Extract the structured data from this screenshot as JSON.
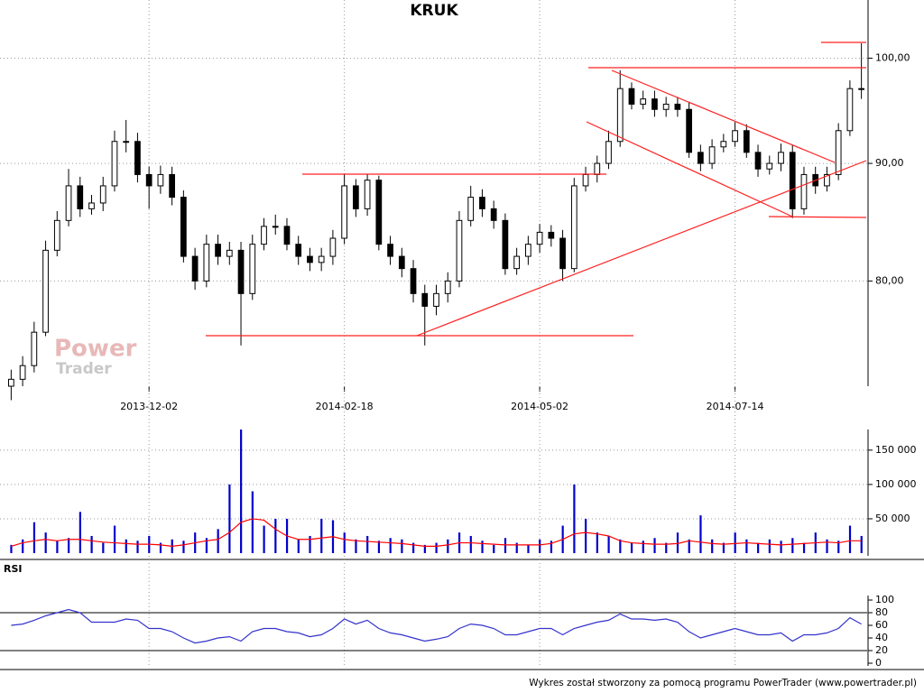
{
  "chart_data": [
    {
      "type": "candlestick",
      "title": "KRUK",
      "categories": [
        null,
        null,
        null,
        null,
        null,
        null,
        null,
        null,
        null,
        null,
        null,
        null,
        "2013-12-02",
        null,
        null,
        null,
        null,
        null,
        null,
        null,
        null,
        null,
        null,
        null,
        null,
        null,
        null,
        null,
        null,
        "2014-02-18",
        null,
        null,
        null,
        null,
        null,
        null,
        null,
        null,
        null,
        null,
        null,
        null,
        null,
        null,
        null,
        null,
        "2014-05-02",
        null,
        null,
        null,
        null,
        null,
        null,
        null,
        null,
        null,
        null,
        null,
        null,
        null,
        null,
        null,
        null,
        "2014-07-14",
        null,
        null,
        null,
        null,
        null,
        null,
        null,
        null,
        null,
        null,
        null
      ],
      "open": [
        72,
        72.5,
        73.5,
        76,
        82.5,
        85,
        88,
        86,
        86.5,
        88,
        92,
        92,
        89,
        88,
        89,
        87,
        82,
        80,
        83,
        82,
        82.5,
        79,
        83,
        84.5,
        84.5,
        83,
        82,
        81.5,
        82,
        83.5,
        88,
        86,
        88.5,
        83,
        82,
        81,
        79,
        78,
        79,
        80,
        85,
        87,
        86,
        85,
        81,
        82,
        83,
        84,
        83.5,
        81,
        88,
        89,
        90,
        92,
        97,
        95.5,
        96,
        95,
        95.5,
        95,
        91,
        90,
        91.5,
        92,
        93,
        91,
        89.5,
        90,
        91,
        86,
        89,
        88,
        89,
        93,
        97
      ],
      "high": [
        73.2,
        74.2,
        76.8,
        83.3,
        85.8,
        89.5,
        88.8,
        87.2,
        88.8,
        93,
        94,
        92.8,
        89.7,
        89.8,
        89.7,
        87.6,
        82.7,
        83.8,
        83.8,
        83.2,
        83.2,
        83.8,
        85.2,
        85.5,
        85.2,
        83.7,
        82.7,
        82.7,
        84.2,
        89,
        88.6,
        89,
        88.9,
        83.7,
        82.7,
        81.7,
        79.7,
        79.7,
        80.7,
        85.8,
        88,
        87.7,
        86.7,
        85.6,
        82.7,
        83.7,
        84.7,
        84.6,
        84.2,
        88.7,
        89.7,
        90.7,
        93,
        98.8,
        97.6,
        96.8,
        96.8,
        96.2,
        96.2,
        95.7,
        91.7,
        92.2,
        92.7,
        93.8,
        93.6,
        91.7,
        90.7,
        91.8,
        91.7,
        89.7,
        89.7,
        89.7,
        93.7,
        97.8,
        101.5
      ],
      "low": [
        71,
        72,
        73,
        75.7,
        82,
        84.5,
        85.3,
        85.5,
        85.8,
        87.5,
        91,
        88.3,
        86,
        87.3,
        86.3,
        81.5,
        79.3,
        79.5,
        81.3,
        81.3,
        75,
        78.5,
        82.5,
        83.8,
        82.5,
        81.3,
        80.8,
        80.8,
        81.3,
        83,
        85.3,
        85.4,
        82.5,
        81.3,
        80.3,
        78.3,
        75,
        77.3,
        78.3,
        79.5,
        84.5,
        85.3,
        84.3,
        80.5,
        80.5,
        81.3,
        82.3,
        82.8,
        80,
        80.7,
        87.5,
        88.3,
        89.5,
        91.5,
        95,
        95,
        94.3,
        94.3,
        94.3,
        90.5,
        89.3,
        89.5,
        91,
        91.5,
        90.5,
        88.8,
        89,
        89.3,
        85.2,
        85.5,
        87.3,
        87.5,
        88.5,
        92.5,
        96
      ],
      "close": [
        72.5,
        73.5,
        76,
        82.5,
        85,
        88,
        86,
        86.5,
        88,
        92,
        92,
        89,
        88,
        89,
        87,
        82,
        80,
        83,
        82,
        82.5,
        79,
        83,
        84.5,
        84.5,
        83,
        82,
        81.5,
        82,
        83.5,
        88,
        86,
        88.5,
        83,
        82,
        81,
        79,
        78,
        79,
        80,
        85,
        87,
        86,
        85,
        81,
        82,
        83,
        84,
        83.5,
        81,
        88,
        89,
        90,
        92,
        97,
        95.5,
        96,
        95,
        95.5,
        95,
        91,
        90,
        91.5,
        92,
        93,
        91,
        89.5,
        90,
        91,
        86,
        89,
        88,
        89,
        93,
        97,
        97
      ],
      "ylim": [
        72,
        106
      ],
      "log_scale": true,
      "grid": true,
      "yticks": [
        {
          "value": 80,
          "label": "80,00"
        },
        {
          "value": 90,
          "label": "90,00"
        },
        {
          "value": 100,
          "label": "100,00"
        }
      ],
      "color_up": "#ffffff",
      "color_down": "#000000"
    },
    {
      "type": "bar",
      "values": [
        12000,
        20000,
        45000,
        30000,
        18000,
        22000,
        60000,
        25000,
        15000,
        40000,
        20000,
        18000,
        25000,
        15000,
        20000,
        18000,
        30000,
        22000,
        35000,
        100000,
        180000,
        90000,
        40000,
        50000,
        50000,
        20000,
        25000,
        50000,
        48000,
        30000,
        20000,
        25000,
        18000,
        22000,
        20000,
        15000,
        12000,
        15000,
        20000,
        30000,
        25000,
        18000,
        12000,
        22000,
        15000,
        12000,
        20000,
        18000,
        40000,
        100000,
        50000,
        30000,
        25000,
        20000,
        15000,
        18000,
        22000,
        15000,
        30000,
        20000,
        55000,
        20000,
        15000,
        30000,
        20000,
        15000,
        20000,
        18000,
        22000,
        15000,
        30000,
        20000,
        18000,
        40000,
        25000
      ],
      "ma": [
        10000,
        15000,
        18000,
        20000,
        18000,
        20000,
        20000,
        18000,
        16000,
        15000,
        14000,
        13000,
        13000,
        12000,
        10000,
        12000,
        15000,
        18000,
        20000,
        30000,
        45000,
        50000,
        48000,
        35000,
        25000,
        20000,
        20000,
        22000,
        24000,
        20000,
        18000,
        17000,
        16000,
        15000,
        14000,
        12000,
        10000,
        10000,
        12000,
        15000,
        15000,
        14000,
        13000,
        12000,
        12000,
        12000,
        12000,
        14000,
        20000,
        28000,
        30000,
        28000,
        25000,
        18000,
        15000,
        14000,
        13000,
        13000,
        14000,
        18000,
        16000,
        14000,
        13000,
        14000,
        15000,
        14000,
        13000,
        12000,
        13000,
        14000,
        15000,
        16000,
        15000,
        18000,
        18000
      ],
      "color": "#0000cc",
      "ma_color": "#ff0000",
      "ylim": [
        0,
        180000
      ],
      "grid": true,
      "yticks": [
        {
          "value": 50000,
          "label": "50 000"
        },
        {
          "value": 100000,
          "label": "100 000"
        },
        {
          "value": 150000,
          "label": "150 000"
        }
      ]
    },
    {
      "type": "line",
      "title": "RSI",
      "values": [
        60,
        62,
        68,
        75,
        80,
        85,
        80,
        65,
        65,
        65,
        70,
        68,
        55,
        55,
        50,
        40,
        32,
        35,
        40,
        42,
        35,
        50,
        55,
        55,
        50,
        48,
        42,
        45,
        55,
        70,
        62,
        68,
        55,
        48,
        45,
        40,
        35,
        38,
        42,
        55,
        62,
        60,
        55,
        45,
        45,
        50,
        55,
        55,
        45,
        55,
        60,
        65,
        68,
        78,
        70,
        70,
        68,
        70,
        65,
        50,
        40,
        45,
        50,
        55,
        50,
        45,
        45,
        48,
        35,
        45,
        45,
        48,
        55,
        72,
        62
      ],
      "color": "#3333cc",
      "ylim": [
        0,
        100
      ],
      "yticks": [
        0,
        20,
        40,
        60,
        80,
        100
      ],
      "reference_lines": [
        20,
        80
      ]
    }
  ],
  "watermark": [
    "Power",
    "Trader"
  ],
  "footer": "Wykres został stworzony za pomocą programu PowerTrader (www.powertrader.pl)"
}
